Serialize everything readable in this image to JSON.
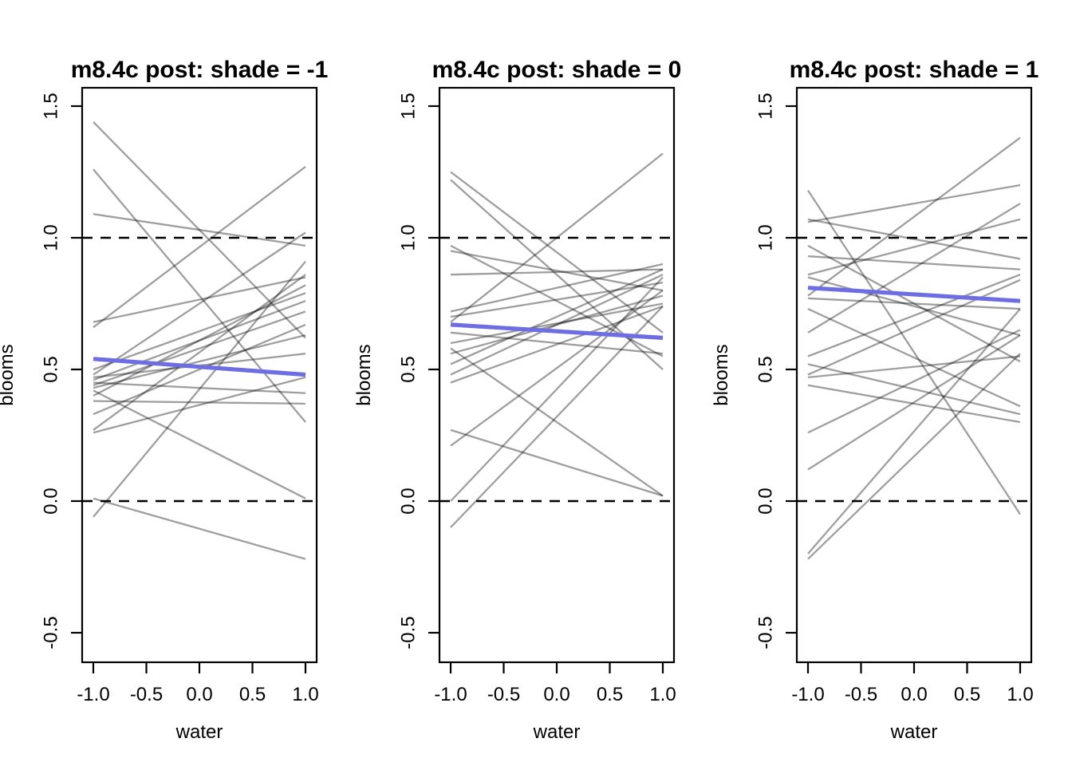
{
  "figure": {
    "background": "#ffffff",
    "frame_color": "#000000",
    "description": "Three-panel R base-graphics plot of posterior regression lines for model m8.4c at three shade levels"
  },
  "chart_data": [
    {
      "type": "line",
      "title": "m8.4c post: shade = -1",
      "xlabel": "water",
      "ylabel": "blooms",
      "x_domain": [
        -1,
        1
      ],
      "xlim": [
        -1.1,
        1.1
      ],
      "ylim": [
        -0.61,
        1.57
      ],
      "x_ticks": [
        -1.0,
        -0.5,
        0.0,
        0.5,
        1.0
      ],
      "x_tick_labels": [
        "-1.0",
        "-0.5",
        "0.0",
        "0.5",
        "1.0"
      ],
      "y_ticks": [
        -0.5,
        0.0,
        0.5,
        1.0,
        1.5
      ],
      "y_tick_labels": [
        "-0.5",
        "0.0",
        "0.5",
        "1.0",
        "1.5"
      ],
      "grid": false,
      "legend": false,
      "reference_hlines": {
        "values": [
          0,
          1
        ],
        "style": "dashed",
        "color": "#000000"
      },
      "mean_line": {
        "name": "posterior-mean-line",
        "color": "#6e6ee4",
        "y_start": 0.54,
        "y_end": 0.48
      },
      "sample_lines": {
        "name": "posterior-sample-lines",
        "color": "rgba(0,0,0,0.38)",
        "endpoints": [
          [
            1.44,
            0.62
          ],
          [
            1.26,
            0.3
          ],
          [
            1.09,
            0.97
          ],
          [
            0.68,
            0.85
          ],
          [
            0.66,
            1.27
          ],
          [
            0.5,
            0.79
          ],
          [
            0.48,
            1.02
          ],
          [
            0.47,
            0.56
          ],
          [
            0.46,
            0.76
          ],
          [
            0.45,
            0.41
          ],
          [
            0.44,
            0.72
          ],
          [
            0.43,
            0.63
          ],
          [
            0.42,
            0.01
          ],
          [
            0.4,
            0.82
          ],
          [
            0.38,
            0.37
          ],
          [
            0.33,
            0.67
          ],
          [
            0.27,
            0.86
          ],
          [
            0.26,
            0.47
          ],
          [
            0.01,
            -0.22
          ],
          [
            -0.06,
            0.91
          ]
        ]
      }
    },
    {
      "type": "line",
      "title": "m8.4c post: shade = 0",
      "xlabel": "water",
      "ylabel": "blooms",
      "x_domain": [
        -1,
        1
      ],
      "xlim": [
        -1.1,
        1.1
      ],
      "ylim": [
        -0.61,
        1.57
      ],
      "x_ticks": [
        -1.0,
        -0.5,
        0.0,
        0.5,
        1.0
      ],
      "x_tick_labels": [
        "-1.0",
        "-0.5",
        "0.0",
        "0.5",
        "1.0"
      ],
      "y_ticks": [
        -0.5,
        0.0,
        0.5,
        1.0,
        1.5
      ],
      "y_tick_labels": [
        "-0.5",
        "0.0",
        "0.5",
        "1.0",
        "1.5"
      ],
      "grid": false,
      "legend": false,
      "reference_hlines": {
        "values": [
          0,
          1
        ],
        "style": "dashed",
        "color": "#000000"
      },
      "mean_line": {
        "name": "posterior-mean-line",
        "color": "#6e6ee4",
        "y_start": 0.67,
        "y_end": 0.62
      },
      "sample_lines": {
        "name": "posterior-sample-lines",
        "color": "rgba(0,0,0,0.38)",
        "endpoints": [
          [
            1.25,
            0.64
          ],
          [
            1.22,
            0.5
          ],
          [
            0.97,
            0.55
          ],
          [
            0.95,
            0.8
          ],
          [
            0.86,
            0.88
          ],
          [
            0.72,
            0.9
          ],
          [
            0.7,
            0.83
          ],
          [
            0.68,
            1.32
          ],
          [
            0.67,
            0.62
          ],
          [
            0.64,
            0.56
          ],
          [
            0.6,
            0.75
          ],
          [
            0.58,
            0.02
          ],
          [
            0.56,
            0.78
          ],
          [
            0.52,
            0.88
          ],
          [
            0.48,
            0.86
          ],
          [
            0.45,
            0.74
          ],
          [
            0.27,
            0.02
          ],
          [
            0.21,
            0.8
          ],
          [
            0.0,
            0.85
          ],
          [
            -0.1,
            0.74
          ]
        ]
      }
    },
    {
      "type": "line",
      "title": "m8.4c post: shade = 1",
      "xlabel": "water",
      "ylabel": "blooms",
      "x_domain": [
        -1,
        1
      ],
      "xlim": [
        -1.1,
        1.1
      ],
      "ylim": [
        -0.61,
        1.57
      ],
      "x_ticks": [
        -1.0,
        -0.5,
        0.0,
        0.5,
        1.0
      ],
      "x_tick_labels": [
        "-1.0",
        "-0.5",
        "0.0",
        "0.5",
        "1.0"
      ],
      "y_ticks": [
        -0.5,
        0.0,
        0.5,
        1.0,
        1.5
      ],
      "y_tick_labels": [
        "-0.5",
        "0.0",
        "0.5",
        "1.0",
        "1.5"
      ],
      "grid": false,
      "legend": false,
      "reference_hlines": {
        "values": [
          0,
          1
        ],
        "style": "dashed",
        "color": "#000000"
      },
      "mean_line": {
        "name": "posterior-mean-line",
        "color": "#6e6ee4",
        "y_start": 0.81,
        "y_end": 0.76
      },
      "sample_lines": {
        "name": "posterior-sample-lines",
        "color": "rgba(0,0,0,0.38)",
        "endpoints": [
          [
            1.18,
            -0.05
          ],
          [
            1.07,
            0.92
          ],
          [
            1.06,
            1.2
          ],
          [
            0.97,
            0.53
          ],
          [
            0.93,
            0.88
          ],
          [
            0.86,
            1.07
          ],
          [
            0.85,
            0.63
          ],
          [
            0.78,
            1.38
          ],
          [
            0.77,
            0.73
          ],
          [
            0.73,
            0.36
          ],
          [
            0.64,
            1.13
          ],
          [
            0.55,
            0.86
          ],
          [
            0.52,
            0.33
          ],
          [
            0.48,
            0.84
          ],
          [
            0.47,
            0.55
          ],
          [
            0.44,
            0.3
          ],
          [
            0.26,
            0.65
          ],
          [
            0.12,
            0.63
          ],
          [
            -0.2,
            0.73
          ],
          [
            -0.22,
            0.56
          ]
        ]
      }
    }
  ]
}
